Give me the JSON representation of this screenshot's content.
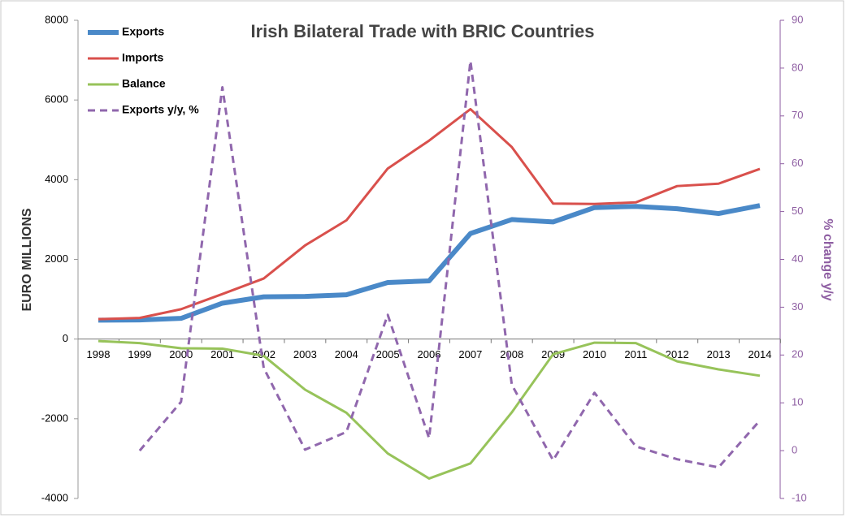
{
  "chart_data": {
    "type": "line",
    "title": "Irish Bilateral Trade with BRIC Countries",
    "ylabel": "EURO MILLIONS",
    "y2label": "% change y/y",
    "categories": [
      "1998",
      "1999",
      "2000",
      "2001",
      "2002",
      "2003",
      "2004",
      "2005",
      "2006",
      "2007",
      "2008",
      "2009",
      "2010",
      "2011",
      "2012",
      "2013",
      "2014"
    ],
    "series": [
      {
        "name": "Exports",
        "color": "#4a89c8",
        "line_width": 6,
        "dashed": false,
        "values": [
          475,
          480,
          520,
          900,
          1060,
          1070,
          1110,
          1420,
          1460,
          2650,
          3000,
          2940,
          3300,
          3330,
          3270,
          3150,
          3350
        ]
      },
      {
        "name": "Imports",
        "color": "#d9504c",
        "line_width": 3,
        "dashed": false,
        "values": [
          500,
          530,
          750,
          1130,
          1520,
          2350,
          2980,
          4280,
          4980,
          5770,
          4820,
          3400,
          3390,
          3430,
          3840,
          3900,
          4270
        ]
      },
      {
        "name": "Balance",
        "color": "#97c35a",
        "line_width": 3,
        "dashed": false,
        "values": [
          -50,
          -100,
          -230,
          -240,
          -420,
          -1270,
          -1850,
          -2870,
          -3500,
          -3120,
          -1840,
          -380,
          -90,
          -100,
          -560,
          -760,
          -920
        ]
      },
      {
        "name": "Exports y/y, %",
        "color": "#9067ad",
        "line_width": 3,
        "dashed": true,
        "axis": "y2",
        "values": [
          null,
          0.0,
          10.2,
          76,
          17.3,
          0.2,
          3.9,
          28.4,
          2.6,
          81.5,
          13.8,
          -2.0,
          12.1,
          0.9,
          -1.8,
          -3.5,
          6.3
        ]
      }
    ],
    "ylim": [
      -4000,
      8000
    ],
    "yticks": [
      -4000,
      -2000,
      0,
      2000,
      4000,
      6000,
      8000
    ],
    "y2lim": [
      -10,
      90
    ],
    "y2ticks": [
      -10,
      0,
      10,
      20,
      30,
      40,
      50,
      60,
      70,
      80,
      90
    ],
    "legend": "top-left"
  }
}
